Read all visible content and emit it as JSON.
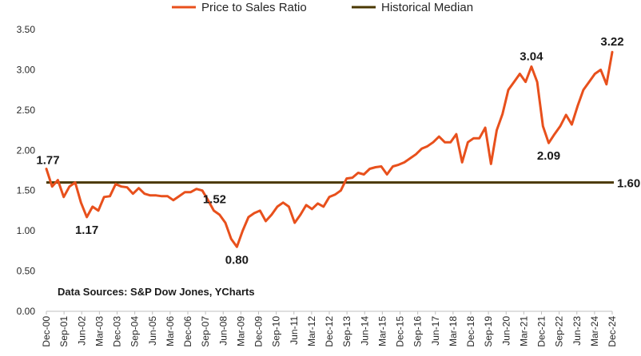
{
  "chart_data": {
    "type": "line",
    "title": "",
    "xlabel": "",
    "ylabel": "",
    "ylim": [
      0,
      3.5
    ],
    "y_ticks": [
      "0.00",
      "0.50",
      "1.00",
      "1.50",
      "2.00",
      "2.50",
      "3.00",
      "3.50"
    ],
    "x_ticks": [
      "Dec-00",
      "Sep-01",
      "Jun-02",
      "Mar-03",
      "Dec-03",
      "Sep-04",
      "Jun-05",
      "Mar-06",
      "Dec-06",
      "Sep-07",
      "Jun-08",
      "Mar-09",
      "Dec-09",
      "Sep-10",
      "Jun-11",
      "Mar-12",
      "Dec-12",
      "Sep-13",
      "Jun-14",
      "Mar-15",
      "Dec-15",
      "Sep-16",
      "Jun-17",
      "Mar-18",
      "Dec-18",
      "Sep-19",
      "Jun-20",
      "Mar-21",
      "Dec-21",
      "Sep-22",
      "Jun-23",
      "Mar-24",
      "Dec-24"
    ],
    "grid": false,
    "legend_position": "top-center",
    "legend": [
      {
        "label": "Price to Sales Ratio",
        "color": "#e8501c"
      },
      {
        "label": "Historical Median",
        "color": "#4a3800"
      }
    ],
    "series": [
      {
        "name": "Price to Sales Ratio",
        "color": "#e8501c",
        "values": [
          1.77,
          1.55,
          1.63,
          1.42,
          1.55,
          1.6,
          1.35,
          1.17,
          1.3,
          1.25,
          1.42,
          1.43,
          1.58,
          1.55,
          1.54,
          1.46,
          1.53,
          1.46,
          1.44,
          1.44,
          1.43,
          1.43,
          1.38,
          1.43,
          1.48,
          1.48,
          1.52,
          1.5,
          1.38,
          1.25,
          1.2,
          1.1,
          0.9,
          0.8,
          1.0,
          1.17,
          1.22,
          1.25,
          1.12,
          1.2,
          1.3,
          1.35,
          1.3,
          1.1,
          1.2,
          1.32,
          1.27,
          1.34,
          1.3,
          1.42,
          1.45,
          1.5,
          1.65,
          1.66,
          1.72,
          1.7,
          1.77,
          1.79,
          1.8,
          1.7,
          1.8,
          1.82,
          1.85,
          1.9,
          1.95,
          2.02,
          2.05,
          2.1,
          2.17,
          2.1,
          2.1,
          2.2,
          1.85,
          2.1,
          2.15,
          2.15,
          2.28,
          1.83,
          2.25,
          2.45,
          2.75,
          2.85,
          2.95,
          2.85,
          3.04,
          2.85,
          2.3,
          2.09,
          2.2,
          2.3,
          2.44,
          2.32,
          2.55,
          2.75,
          2.85,
          2.95,
          3.0,
          2.82,
          3.22
        ]
      },
      {
        "name": "Historical Median",
        "color": "#4a3800",
        "value": 1.6
      }
    ],
    "annotations": [
      {
        "text": "1.77",
        "index": 0,
        "value": 1.77,
        "placement": "above"
      },
      {
        "text": "1.17",
        "index": 7,
        "value": 1.17,
        "placement": "below"
      },
      {
        "text": "1.52",
        "index": 26,
        "value": 1.52,
        "placement": "below-right"
      },
      {
        "text": "0.80",
        "index": 33,
        "value": 0.8,
        "placement": "below"
      },
      {
        "text": "3.04",
        "index": 84,
        "value": 3.04,
        "placement": "above"
      },
      {
        "text": "2.09",
        "index": 87,
        "value": 2.09,
        "placement": "below"
      },
      {
        "text": "3.22",
        "index": 98,
        "value": 3.22,
        "placement": "above"
      },
      {
        "text": "1.60",
        "index": 98,
        "value": 1.6,
        "placement": "right"
      }
    ],
    "source_note": "Data Sources: S&P Dow Jones, YCharts"
  }
}
